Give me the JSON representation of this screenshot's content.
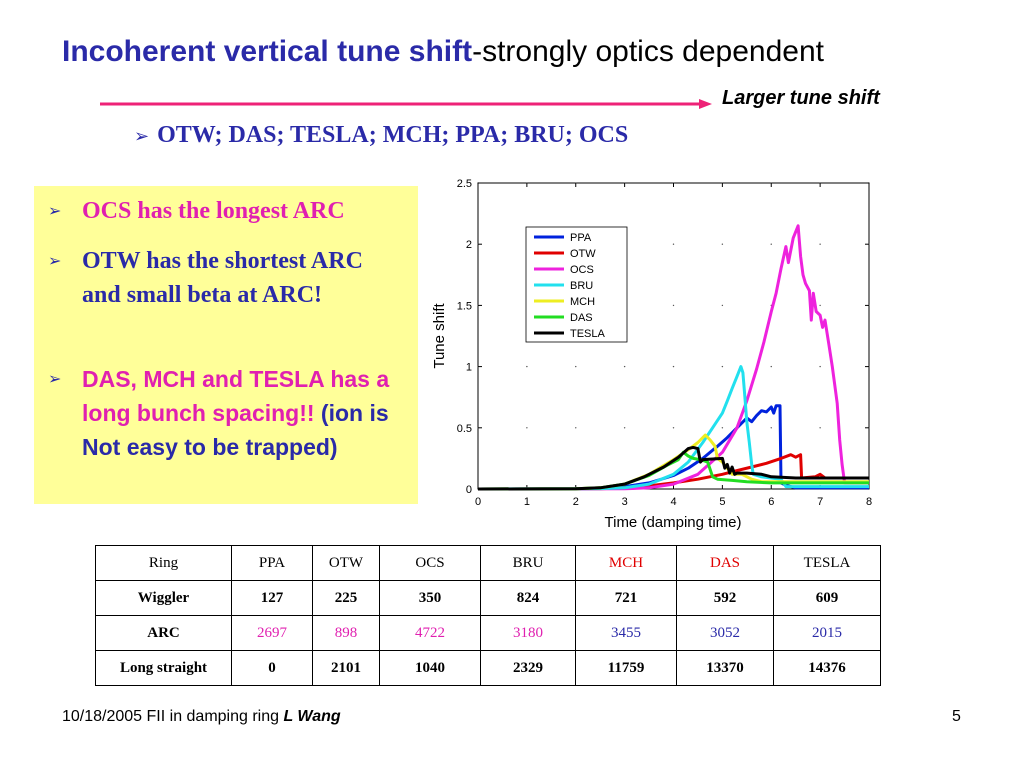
{
  "title": {
    "bold": "Incoherent vertical tune shift",
    "rest": "-strongly optics dependent"
  },
  "arrow_label": "Larger tune shift",
  "rings_list": "OTW; DAS; TESLA; MCH; PPA; BRU; OCS",
  "notes": {
    "n1": "OCS has the longest  ARC",
    "n2": "OTW has the shortest ARC and small beta at ARC!",
    "n3_highlight": "DAS, MCH and TESLA has a long bunch spacing!!",
    "n3_rest": " (ion is Not easy to be trapped)"
  },
  "colors": {
    "title_blue": "#2a2aa8",
    "pink": "#e020b0",
    "red": "#e00000",
    "note_bg": "#ffff99"
  },
  "chart_data": {
    "type": "line",
    "xlabel": "Time  (damping time)",
    "ylabel": "Tune shift",
    "xlim": [
      0,
      8
    ],
    "ylim": [
      0,
      2.5
    ],
    "xticks": [
      "0",
      "1",
      "2",
      "3",
      "4",
      "5",
      "6",
      "7",
      "8"
    ],
    "yticks": [
      "0",
      "0.5",
      "1",
      "1.5",
      "2",
      "2.5"
    ],
    "legend_position": "upper-middle",
    "series": [
      {
        "name": "PPA",
        "color": "#0022dd",
        "points": [
          [
            0,
            0
          ],
          [
            2,
            0.001
          ],
          [
            2.5,
            0.005
          ],
          [
            3,
            0.02
          ],
          [
            3.5,
            0.05
          ],
          [
            4,
            0.11
          ],
          [
            4.3,
            0.17
          ],
          [
            4.6,
            0.25
          ],
          [
            4.9,
            0.35
          ],
          [
            5.1,
            0.42
          ],
          [
            5.3,
            0.5
          ],
          [
            5.5,
            0.58
          ],
          [
            5.6,
            0.55
          ],
          [
            5.7,
            0.6
          ],
          [
            5.8,
            0.64
          ],
          [
            5.9,
            0.63
          ],
          [
            6.0,
            0.67
          ],
          [
            6.05,
            0.62
          ],
          [
            6.1,
            0.68
          ],
          [
            6.18,
            0.68
          ],
          [
            6.2,
            0.05
          ],
          [
            6.3,
            0.03
          ],
          [
            6.5,
            0.01
          ],
          [
            7,
            0.01
          ],
          [
            8,
            0.01
          ]
        ]
      },
      {
        "name": "OTW",
        "color": "#e00000",
        "points": [
          [
            0,
            0
          ],
          [
            2.5,
            0.002
          ],
          [
            3,
            0.01
          ],
          [
            3.5,
            0.025
          ],
          [
            4,
            0.05
          ],
          [
            4.5,
            0.08
          ],
          [
            5,
            0.12
          ],
          [
            5.3,
            0.15
          ],
          [
            5.6,
            0.18
          ],
          [
            5.9,
            0.21
          ],
          [
            6.2,
            0.25
          ],
          [
            6.4,
            0.28
          ],
          [
            6.5,
            0.26
          ],
          [
            6.6,
            0.28
          ],
          [
            6.62,
            0.09
          ],
          [
            6.9,
            0.1
          ],
          [
            7,
            0.12
          ],
          [
            7.1,
            0.09
          ],
          [
            8,
            0.09
          ]
        ]
      },
      {
        "name": "OCS",
        "color": "#ee22dd",
        "points": [
          [
            0,
            0
          ],
          [
            3,
            0.002
          ],
          [
            3.5,
            0.01
          ],
          [
            4,
            0.04
          ],
          [
            4.5,
            0.12
          ],
          [
            5,
            0.3
          ],
          [
            5.3,
            0.5
          ],
          [
            5.5,
            0.72
          ],
          [
            5.7,
            0.98
          ],
          [
            5.85,
            1.2
          ],
          [
            6.0,
            1.45
          ],
          [
            6.1,
            1.6
          ],
          [
            6.2,
            1.8
          ],
          [
            6.3,
            1.98
          ],
          [
            6.35,
            1.85
          ],
          [
            6.4,
            1.95
          ],
          [
            6.45,
            2.05
          ],
          [
            6.55,
            2.15
          ],
          [
            6.6,
            1.9
          ],
          [
            6.65,
            1.75
          ],
          [
            6.7,
            1.68
          ],
          [
            6.78,
            1.62
          ],
          [
            6.82,
            1.38
          ],
          [
            6.86,
            1.6
          ],
          [
            6.92,
            1.45
          ],
          [
            7.0,
            1.42
          ],
          [
            7.05,
            1.32
          ],
          [
            7.1,
            1.38
          ],
          [
            7.18,
            1.18
          ],
          [
            7.25,
            1.0
          ],
          [
            7.35,
            0.7
          ],
          [
            7.4,
            0.4
          ],
          [
            7.45,
            0.2
          ],
          [
            7.5,
            0.05
          ],
          [
            8,
            0.05
          ]
        ]
      },
      {
        "name": "BRU",
        "color": "#22e0ee",
        "points": [
          [
            0,
            0
          ],
          [
            2.5,
            0.003
          ],
          [
            3,
            0.01
          ],
          [
            3.5,
            0.04
          ],
          [
            4,
            0.12
          ],
          [
            4.3,
            0.22
          ],
          [
            4.6,
            0.38
          ],
          [
            4.8,
            0.5
          ],
          [
            5.0,
            0.62
          ],
          [
            5.1,
            0.72
          ],
          [
            5.2,
            0.82
          ],
          [
            5.3,
            0.92
          ],
          [
            5.38,
            1.0
          ],
          [
            5.42,
            0.95
          ],
          [
            5.46,
            0.75
          ],
          [
            5.5,
            0.55
          ],
          [
            5.55,
            0.38
          ],
          [
            5.6,
            0.2
          ],
          [
            5.63,
            0.12
          ],
          [
            5.8,
            0.1
          ],
          [
            6.2,
            0.08
          ],
          [
            6.3,
            0.02
          ],
          [
            8,
            0.02
          ]
        ]
      },
      {
        "name": "MCH",
        "color": "#eeee22",
        "points": [
          [
            0,
            0
          ],
          [
            2,
            0.002
          ],
          [
            2.5,
            0.01
          ],
          [
            3,
            0.04
          ],
          [
            3.5,
            0.12
          ],
          [
            4,
            0.24
          ],
          [
            4.3,
            0.32
          ],
          [
            4.5,
            0.38
          ],
          [
            4.65,
            0.44
          ],
          [
            4.75,
            0.4
          ],
          [
            4.85,
            0.35
          ],
          [
            4.9,
            0.25
          ],
          [
            5.0,
            0.22
          ],
          [
            5.2,
            0.12
          ],
          [
            5.4,
            0.12
          ],
          [
            5.6,
            0.08
          ],
          [
            5.8,
            0.06
          ],
          [
            6,
            0.06
          ],
          [
            7,
            0.06
          ],
          [
            8,
            0.06
          ]
        ]
      },
      {
        "name": "DAS",
        "color": "#22dd22",
        "points": [
          [
            0,
            0
          ],
          [
            2,
            0.002
          ],
          [
            2.5,
            0.01
          ],
          [
            3,
            0.04
          ],
          [
            3.5,
            0.11
          ],
          [
            3.9,
            0.2
          ],
          [
            4.1,
            0.24
          ],
          [
            4.2,
            0.3
          ],
          [
            4.3,
            0.27
          ],
          [
            4.4,
            0.25
          ],
          [
            4.55,
            0.24
          ],
          [
            4.7,
            0.22
          ],
          [
            4.8,
            0.1
          ],
          [
            4.9,
            0.08
          ],
          [
            5.2,
            0.07
          ],
          [
            5.5,
            0.06
          ],
          [
            6,
            0.05
          ],
          [
            8,
            0.05
          ]
        ]
      },
      {
        "name": "TESLA",
        "color": "#000000",
        "points": [
          [
            0,
            0
          ],
          [
            2,
            0.002
          ],
          [
            2.5,
            0.01
          ],
          [
            3,
            0.04
          ],
          [
            3.4,
            0.1
          ],
          [
            3.8,
            0.18
          ],
          [
            4.1,
            0.26
          ],
          [
            4.3,
            0.33
          ],
          [
            4.4,
            0.34
          ],
          [
            4.5,
            0.33
          ],
          [
            4.55,
            0.22
          ],
          [
            4.6,
            0.24
          ],
          [
            5.0,
            0.25
          ],
          [
            5.05,
            0.17
          ],
          [
            5.1,
            0.2
          ],
          [
            5.15,
            0.13
          ],
          [
            5.2,
            0.18
          ],
          [
            5.25,
            0.12
          ],
          [
            5.3,
            0.13
          ],
          [
            5.5,
            0.13
          ],
          [
            5.8,
            0.12
          ],
          [
            6.0,
            0.1
          ],
          [
            6.5,
            0.09
          ],
          [
            7,
            0.09
          ],
          [
            8,
            0.09
          ]
        ]
      }
    ]
  },
  "table": {
    "header": {
      "label": "Ring",
      "cols": [
        "PPA",
        "OTW",
        "OCS",
        "BRU",
        "MCH",
        "DAS",
        "TESLA"
      ]
    },
    "rows": [
      {
        "label": "Wiggler",
        "values": [
          "127",
          "225",
          "350",
          "824",
          "721",
          "592",
          "609"
        ]
      },
      {
        "label": "ARC",
        "values": [
          "2697",
          "898",
          "4722",
          "3180",
          "3455",
          "3052",
          "2015"
        ]
      },
      {
        "label": "Long straight",
        "values": [
          "0",
          "2101",
          "1040",
          "2329",
          "11759",
          "13370",
          "14376"
        ]
      }
    ],
    "header_colors": [
      "#000000",
      "#000000",
      "#000000",
      "#000000",
      "#e00000",
      "#e00000",
      "#000000"
    ],
    "arc_colors": [
      "#e020b0",
      "#e020b0",
      "#e020b0",
      "#e020b0",
      "#2a2aa8",
      "#2a2aa8",
      "#2a2aa8"
    ]
  },
  "footer": {
    "text": "10/18/2005 FII in damping ring  ",
    "author": "L Wang",
    "page": "5"
  }
}
